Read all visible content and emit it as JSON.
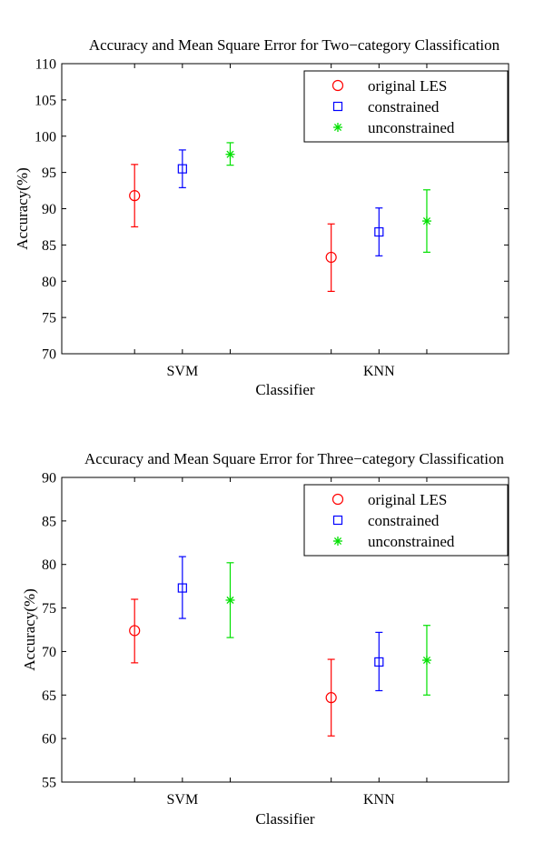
{
  "chart_data": [
    {
      "type": "errorbar",
      "title": "Accuracy and Mean Square Error for Two−category Classification",
      "xlabel": "Classifier",
      "ylabel": "Accuracy(%)",
      "categories": [
        "SVM",
        "KNN"
      ],
      "ylim": [
        70,
        110
      ],
      "yticks": [
        70,
        75,
        80,
        85,
        90,
        95,
        100,
        105,
        110
      ],
      "legend_position": "top-right",
      "grid": false,
      "series": [
        {
          "name": "original LES",
          "color": "#ff0000",
          "marker": "circle",
          "values": [
            91.8,
            83.3
          ],
          "lower": [
            87.5,
            78.6
          ],
          "upper": [
            96.1,
            87.9
          ]
        },
        {
          "name": "constrained",
          "color": "#0000ff",
          "marker": "square",
          "values": [
            95.5,
            86.8
          ],
          "lower": [
            92.9,
            83.5
          ],
          "upper": [
            98.1,
            90.1
          ]
        },
        {
          "name": "unconstrained",
          "color": "#00e000",
          "marker": "asterisk",
          "values": [
            97.5,
            88.3
          ],
          "lower": [
            96.0,
            84.0
          ],
          "upper": [
            99.1,
            92.6
          ]
        }
      ]
    },
    {
      "type": "errorbar",
      "title": "Accuracy and Mean Square Error for Three−category Classification",
      "xlabel": "Classifier",
      "ylabel": "Accuracy(%)",
      "categories": [
        "SVM",
        "KNN"
      ],
      "ylim": [
        55,
        90
      ],
      "yticks": [
        55,
        60,
        65,
        70,
        75,
        80,
        85,
        90
      ],
      "legend_position": "top-right",
      "grid": false,
      "series": [
        {
          "name": "original LES",
          "color": "#ff0000",
          "marker": "circle",
          "values": [
            72.4,
            64.7
          ],
          "lower": [
            68.7,
            60.3
          ],
          "upper": [
            76.0,
            69.1
          ]
        },
        {
          "name": "constrained",
          "color": "#0000ff",
          "marker": "square",
          "values": [
            77.3,
            68.8
          ],
          "lower": [
            73.8,
            65.5
          ],
          "upper": [
            80.9,
            72.2
          ]
        },
        {
          "name": "unconstrained",
          "color": "#00e000",
          "marker": "asterisk",
          "values": [
            75.9,
            69.0
          ],
          "lower": [
            71.6,
            65.0
          ],
          "upper": [
            80.2,
            73.0
          ]
        }
      ]
    }
  ]
}
